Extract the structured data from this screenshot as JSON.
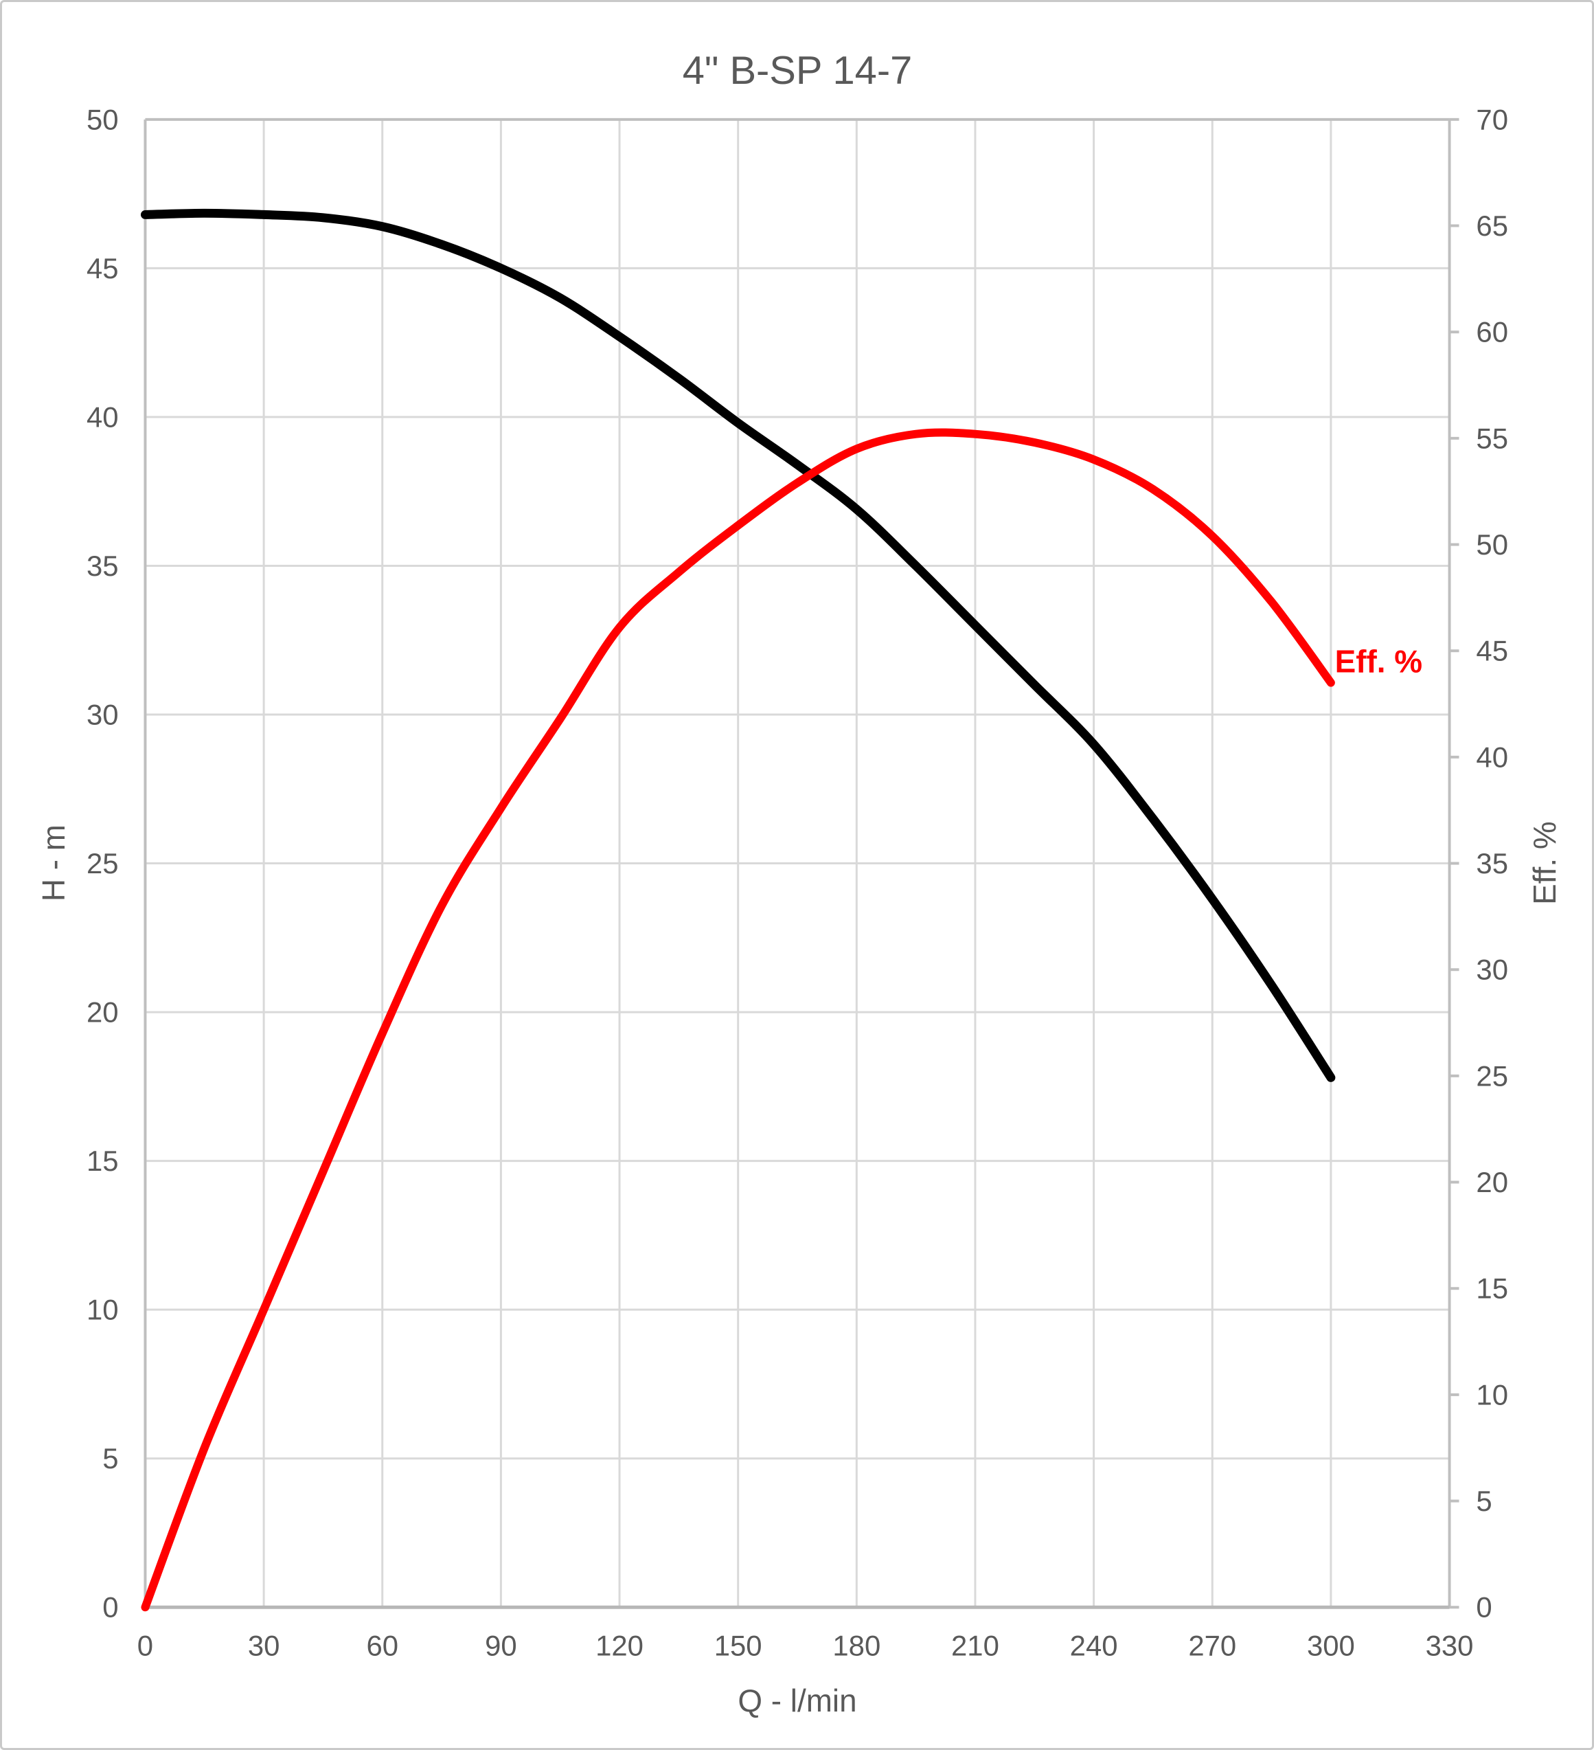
{
  "chart_data": {
    "type": "line",
    "title": "4\" B-SP 14-7",
    "xlabel": "Q - l/min",
    "ylabel_left": "H - m",
    "ylabel_right": "Eff. %",
    "series_label": "Eff. %",
    "grid": true,
    "legend": "none",
    "x_range": [
      0,
      330
    ],
    "y_left_range": [
      0,
      50
    ],
    "y_right_range": [
      0,
      70
    ],
    "x_ticks": [
      0,
      30,
      60,
      90,
      120,
      150,
      180,
      210,
      240,
      270,
      300,
      330
    ],
    "y_left_ticks": [
      0,
      5,
      10,
      15,
      20,
      25,
      30,
      35,
      40,
      45,
      50
    ],
    "y_right_ticks": [
      0,
      5,
      10,
      15,
      20,
      25,
      30,
      35,
      40,
      45,
      50,
      55,
      60,
      65,
      70
    ],
    "x": [
      0,
      15,
      30,
      45,
      60,
      75,
      90,
      105,
      120,
      135,
      150,
      165,
      180,
      195,
      210,
      225,
      240,
      255,
      270,
      285,
      300
    ],
    "series": [
      {
        "name": "Head curve (H - m)",
        "axis": "left",
        "color": "#000000",
        "values": [
          46.8,
          46.85,
          46.8,
          46.7,
          46.4,
          45.8,
          45.0,
          44.0,
          42.7,
          41.3,
          39.8,
          38.4,
          36.9,
          35.0,
          33.0,
          31.0,
          29.0,
          26.5,
          23.8,
          20.9,
          17.8
        ]
      },
      {
        "name": "Efficiency curve (Eff. %)",
        "axis": "right",
        "color": "#ff0000",
        "values": [
          0,
          7.5,
          14.0,
          20.5,
          27.0,
          33.0,
          37.6,
          41.8,
          46.1,
          48.7,
          50.9,
          52.9,
          54.5,
          55.2,
          55.2,
          54.8,
          54.0,
          52.6,
          50.4,
          47.3,
          43.5
        ]
      }
    ],
    "series_label_anchor": {
      "q": 301,
      "eff": 44.5
    },
    "colors": {
      "head_curve": "#000000",
      "efficiency_curve": "#ff0000",
      "gridline": "#d9d9d9",
      "axis_line": "#bfbfbf",
      "bottom_axis_line": "#b7b7b7",
      "text": "#595959",
      "frame_border": "#c9c9c9",
      "background": "#ffffff"
    }
  }
}
